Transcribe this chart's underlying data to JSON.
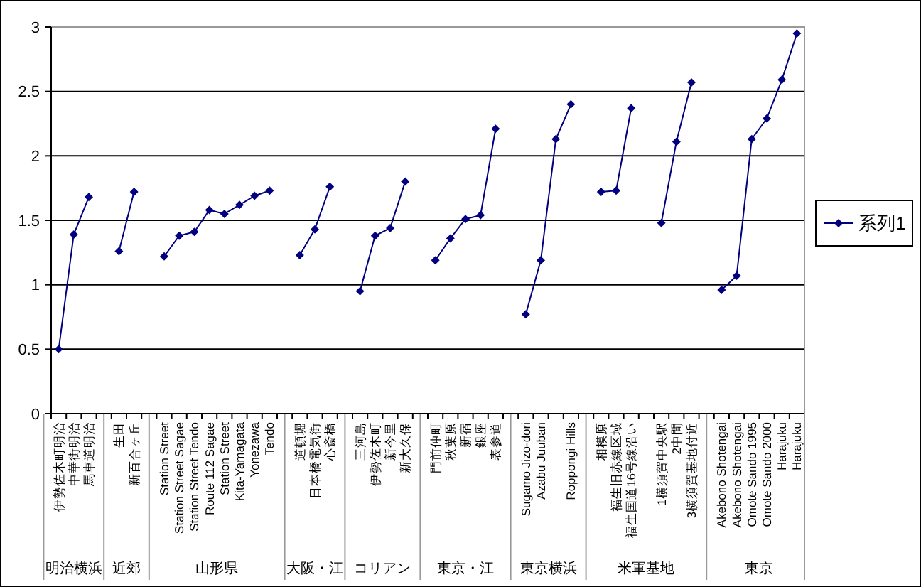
{
  "chart_data": {
    "type": "line",
    "categories": [
      "伊勢佐木町明治",
      "中華街明治",
      "馬車道明治",
      null,
      "生田",
      "新百合ヶ丘",
      null,
      "Station Street",
      "Station Street Sagae",
      "Station Street Tendo",
      "Route 112 Sagae",
      "Station Street",
      "Kita-Yamagata",
      "Yonezawa",
      "Tendo",
      null,
      "道頓堀",
      "日本橋電気街",
      "心斎橋",
      null,
      "三河島",
      "伊勢佐木町",
      "新今里",
      "新大久保",
      null,
      "門前仲町",
      "秋葉原",
      "新宿",
      "銀座",
      "表参道",
      null,
      "Sugamo Jizo-dori",
      "Azabu Juuban",
      null,
      "Roppongi Hills",
      null,
      "相模原",
      "福生旧赤線区域",
      "福生国道16号線沿い",
      null,
      "1横須賀中央駅",
      "2中間",
      "3横須賀基地付近",
      null,
      "Akebono Shotengai",
      "Akebono Shotengai",
      "Omote Sando 1995",
      "Omote Sando 2000",
      "Harajuku",
      "Harajuku"
    ],
    "series": [
      {
        "name": "系列1",
        "color": "#000080",
        "values": [
          0.5,
          1.39,
          1.68,
          null,
          1.26,
          1.72,
          null,
          1.22,
          1.38,
          1.41,
          1.58,
          1.55,
          1.62,
          1.69,
          1.73,
          null,
          1.23,
          1.43,
          1.76,
          null,
          0.95,
          1.38,
          1.44,
          1.8,
          null,
          1.19,
          1.36,
          1.51,
          1.54,
          2.21,
          null,
          0.77,
          1.19,
          2.13,
          2.4,
          null,
          1.72,
          1.73,
          2.37,
          null,
          1.48,
          2.11,
          2.57,
          null,
          0.96,
          1.07,
          2.13,
          2.29,
          2.59,
          2.95
        ]
      }
    ],
    "annotations": [
      "明治横浜",
      "近郊",
      "山形県",
      "大阪・江",
      "コリアン",
      "東京・江",
      "東京横浜",
      "米軍基地",
      "東京"
    ],
    "ylim": [
      0,
      3
    ],
    "yticks": [
      0,
      0.5,
      1,
      1.5,
      2,
      2.5,
      3
    ],
    "grid": "y",
    "legend": "right",
    "marker": "diamond",
    "line_style": "solid"
  }
}
